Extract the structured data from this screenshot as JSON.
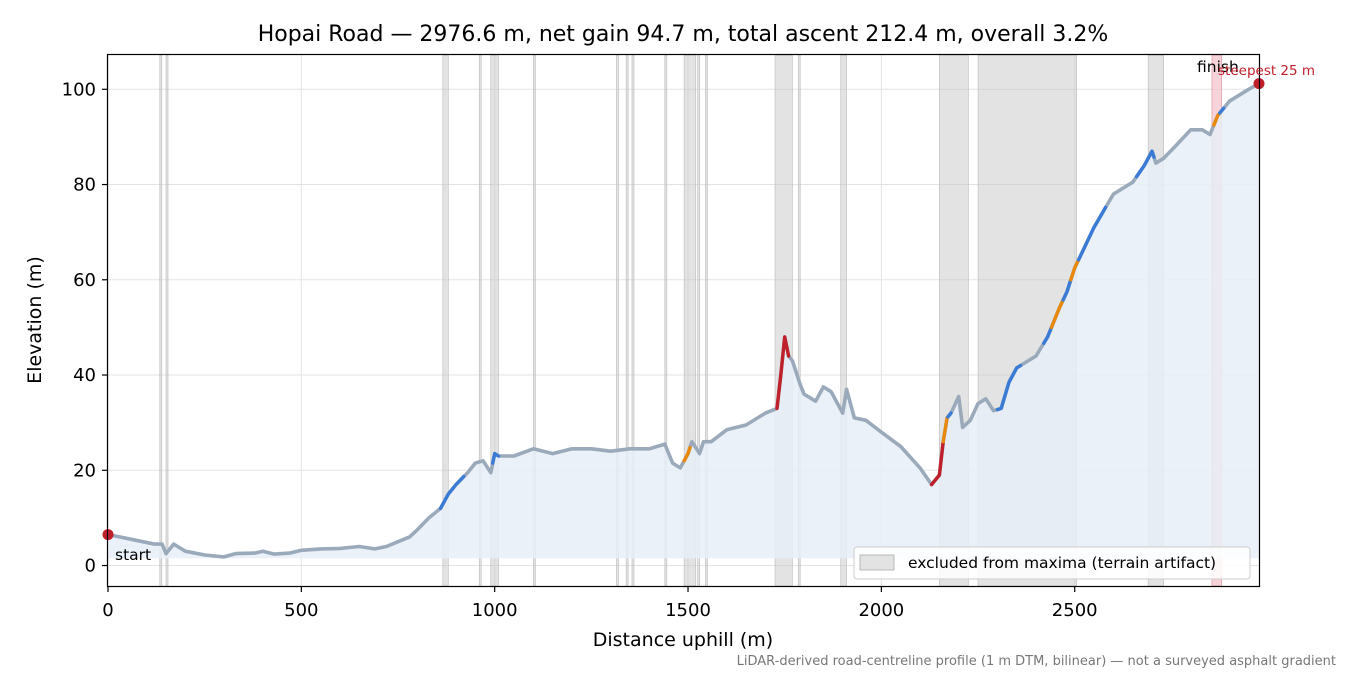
{
  "chart_data": {
    "type": "line",
    "title": "Hopai Road — 2976.6 m, net gain 94.7 m, total ascent 212.4 m, overall 3.2%",
    "xlabel": "Distance uphill (m)",
    "ylabel": "Elevation (m)",
    "xlim": [
      0,
      2976.6
    ],
    "ylim": [
      -4.3,
      107.2
    ],
    "xticks": [
      0,
      500,
      1000,
      1500,
      2000,
      2500
    ],
    "yticks": [
      0,
      20,
      40,
      60,
      80,
      100
    ],
    "grid": true,
    "legend": {
      "placement": "lower-right",
      "label": "excluded from maxima (terrain artifact)"
    },
    "footnote": "LiDAR-derived road-centreline profile (1 m DTM, bilinear) — not a surveyed asphalt gradient",
    "annotations": {
      "start": "start",
      "finish": "finish",
      "steepest": "steepest 25 m"
    },
    "colors": {
      "profile": "#9aaabb",
      "fill": "#e8eef7",
      "moderate": "#3a7bd5",
      "steep": "#e8890c",
      "very_steep": "#c0202a",
      "excluded": "#c8c8c8",
      "steepest_band": "#f2c0c8",
      "endpoint": "#c0202a"
    },
    "profile": {
      "x": [
        0,
        30,
        60,
        90,
        120,
        140,
        150,
        170,
        200,
        250,
        300,
        330,
        380,
        400,
        430,
        470,
        500,
        550,
        600,
        650,
        690,
        720,
        750,
        780,
        800,
        830,
        860,
        880,
        900,
        930,
        950,
        970,
        990,
        1000,
        1010,
        1050,
        1100,
        1150,
        1200,
        1250,
        1300,
        1350,
        1400,
        1440,
        1460,
        1480,
        1500,
        1510,
        1530,
        1540,
        1560,
        1600,
        1650,
        1700,
        1730,
        1740,
        1750,
        1760,
        1770,
        1790,
        1800,
        1830,
        1850,
        1870,
        1900,
        1910,
        1930,
        1960,
        2000,
        2050,
        2100,
        2130,
        2150,
        2160,
        2170,
        2180,
        2200,
        2210,
        2230,
        2250,
        2270,
        2290,
        2310,
        2330,
        2350,
        2370,
        2400,
        2430,
        2460,
        2480,
        2500,
        2550,
        2600,
        2650,
        2680,
        2700,
        2710,
        2730,
        2760,
        2800,
        2830,
        2850,
        2870,
        2900,
        2950,
        2976.6
      ],
      "y": [
        6.5,
        6,
        5.5,
        5,
        4.5,
        4.5,
        2.5,
        4.5,
        3,
        2.2,
        1.8,
        2.5,
        2.6,
        3,
        2.4,
        2.6,
        3.2,
        3.5,
        3.6,
        4,
        3.5,
        4,
        5,
        6,
        7.5,
        10,
        12,
        15,
        17,
        19.5,
        21.5,
        22,
        19.5,
        23.5,
        23,
        23,
        24.5,
        23.5,
        24.5,
        24.5,
        24,
        24.5,
        24.5,
        25.5,
        21.5,
        20.5,
        23.5,
        26,
        23.5,
        26,
        26,
        28.5,
        29.5,
        32,
        33,
        40,
        48,
        44,
        43,
        38,
        36,
        34.5,
        37.5,
        36.5,
        32,
        37,
        31,
        30.5,
        28,
        25,
        20.5,
        17,
        19,
        26,
        31,
        32,
        35.5,
        29,
        30.5,
        34,
        35,
        32.5,
        33,
        38.5,
        41.5,
        42.5,
        44,
        48,
        54,
        57.5,
        62.5,
        71,
        78,
        80.5,
        84,
        87,
        84.5,
        85.5,
        88,
        91.5,
        91.5,
        90.5,
        94.5,
        97.5,
        100,
        101.2
      ]
    },
    "gradient_segments": [
      {
        "class": "moderate",
        "x": [
          860,
          920
        ]
      },
      {
        "class": "moderate",
        "x": [
          995,
          1010
        ]
      },
      {
        "class": "steep",
        "x": [
          1490,
          1505
        ]
      },
      {
        "class": "very_steep",
        "x": [
          1730,
          1760
        ]
      },
      {
        "class": "very_steep",
        "x": [
          2130,
          2160
        ]
      },
      {
        "class": "steep",
        "x": [
          2160,
          2172
        ]
      },
      {
        "class": "moderate",
        "x": [
          2172,
          2180
        ]
      },
      {
        "class": "moderate",
        "x": [
          2300,
          2360
        ]
      },
      {
        "class": "moderate",
        "x": [
          2420,
          2440
        ]
      },
      {
        "class": "steep",
        "x": [
          2440,
          2470
        ]
      },
      {
        "class": "moderate",
        "x": [
          2470,
          2490
        ]
      },
      {
        "class": "steep",
        "x": [
          2490,
          2510
        ]
      },
      {
        "class": "moderate",
        "x": [
          2510,
          2580
        ]
      },
      {
        "class": "moderate",
        "x": [
          2660,
          2690
        ]
      },
      {
        "class": "moderate",
        "x": [
          2690,
          2705
        ]
      },
      {
        "class": "steep",
        "x": [
          2860,
          2875
        ]
      },
      {
        "class": "moderate",
        "x": [
          2875,
          2885
        ]
      }
    ],
    "excluded_ranges": [
      [
        134,
        139
      ],
      [
        150,
        155
      ],
      [
        866,
        880
      ],
      [
        960,
        965
      ],
      [
        990,
        1010
      ],
      [
        1100,
        1105
      ],
      [
        1315,
        1320
      ],
      [
        1340,
        1345
      ],
      [
        1355,
        1360
      ],
      [
        1440,
        1445
      ],
      [
        1490,
        1520
      ],
      [
        1525,
        1530
      ],
      [
        1545,
        1550
      ],
      [
        1725,
        1770
      ],
      [
        1785,
        1790
      ],
      [
        1895,
        1910
      ],
      [
        2150,
        2225
      ],
      [
        2250,
        2505
      ],
      [
        2690,
        2730
      ]
    ],
    "steepest_range": [
      2855,
      2880
    ]
  }
}
